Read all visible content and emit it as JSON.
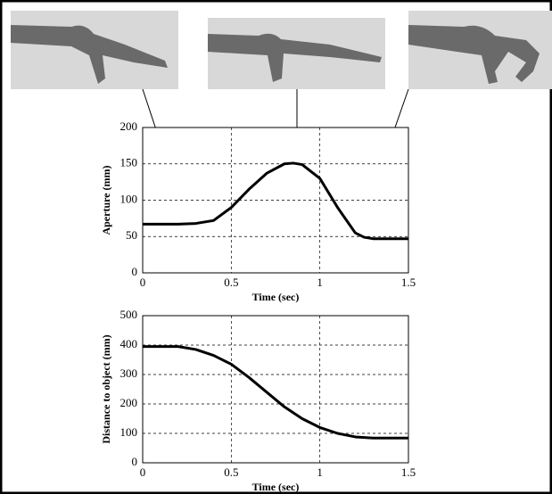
{
  "chart_data": [
    {
      "type": "line",
      "xlabel": "Time (sec)",
      "ylabel": "Aperture (mm)",
      "x": [
        0,
        0.2,
        0.3,
        0.4,
        0.5,
        0.6,
        0.7,
        0.8,
        0.85,
        0.9,
        1.0,
        1.1,
        1.2,
        1.25,
        1.3,
        1.5
      ],
      "series": [
        {
          "color": "#000000",
          "values": [
            67,
            67,
            68,
            72,
            90,
            115,
            137,
            150,
            151,
            149,
            130,
            90,
            55,
            49,
            47,
            47
          ]
        }
      ],
      "xlim": [
        0,
        1.5
      ],
      "ylim": [
        0,
        200
      ],
      "xticks": [
        0,
        0.5,
        1,
        1.5
      ],
      "yticks": [
        0,
        50,
        100,
        150,
        200
      ],
      "grid": true
    },
    {
      "type": "line",
      "xlabel": "Time (sec)",
      "ylabel": "Distance to object (mm)",
      "x": [
        0,
        0.2,
        0.3,
        0.4,
        0.5,
        0.6,
        0.7,
        0.8,
        0.9,
        1.0,
        1.1,
        1.2,
        1.3,
        1.5
      ],
      "series": [
        {
          "color": "#000000",
          "values": [
            395,
            395,
            385,
            365,
            335,
            290,
            240,
            190,
            150,
            120,
            100,
            88,
            84,
            84
          ]
        }
      ],
      "xlim": [
        0,
        1.5
      ],
      "ylim": [
        0,
        500
      ],
      "xticks": [
        0,
        0.5,
        1,
        1.5
      ],
      "yticks": [
        0,
        100,
        200,
        300,
        400,
        500
      ],
      "grid": true
    }
  ]
}
